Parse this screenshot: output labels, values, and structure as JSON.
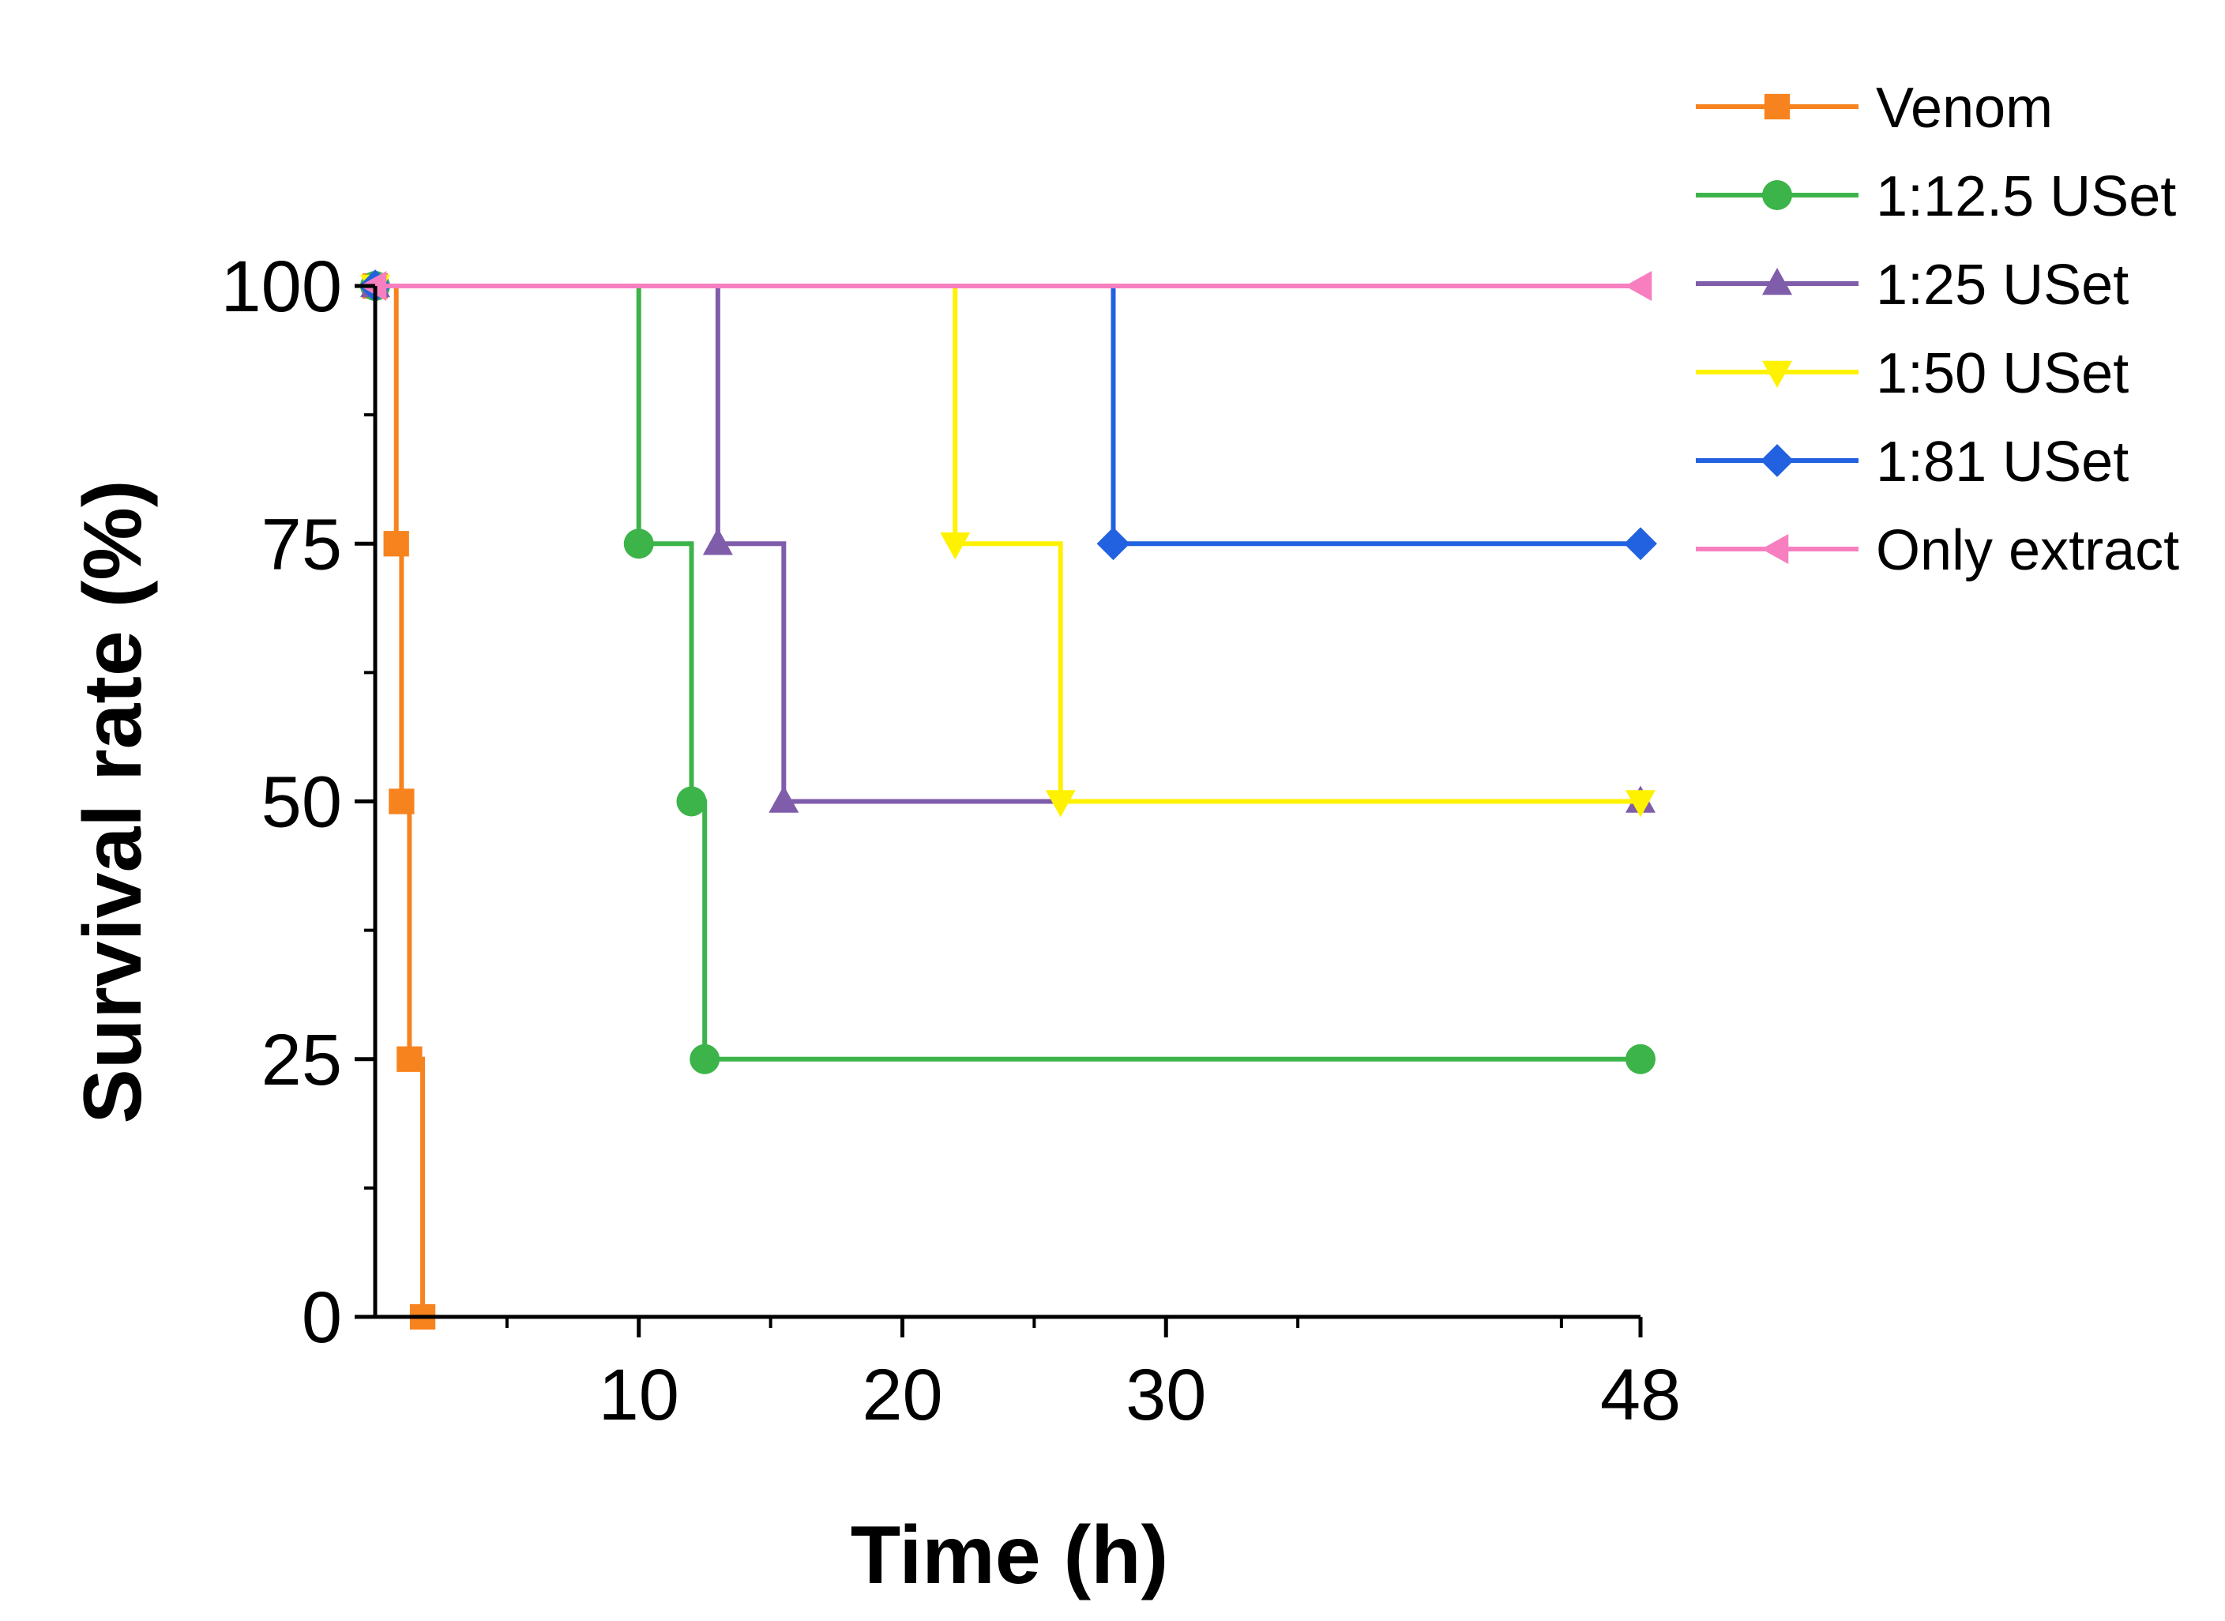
{
  "chart_data": {
    "type": "line",
    "step": true,
    "title": "",
    "xlabel": "Time (h)",
    "ylabel": "Survival rate (%)",
    "xlim": [
      0,
      48
    ],
    "ylim": [
      0,
      100
    ],
    "x_ticks": [
      10,
      20,
      30,
      48
    ],
    "y_ticks": [
      0,
      25,
      50,
      75,
      100
    ],
    "legend_position": "top-right",
    "series": [
      {
        "name": "Venom",
        "color": "#F7831F",
        "marker": "square",
        "points": [
          [
            0,
            100
          ],
          [
            0.8,
            75
          ],
          [
            1.0,
            50
          ],
          [
            1.3,
            25
          ],
          [
            1.8,
            0
          ]
        ]
      },
      {
        "name": "1:12.5 USet",
        "color": "#3CB44A",
        "marker": "circle",
        "points": [
          [
            0,
            100
          ],
          [
            10,
            75
          ],
          [
            12,
            50
          ],
          [
            12.5,
            25
          ],
          [
            48,
            25
          ]
        ]
      },
      {
        "name": "1:25 USet",
        "color": "#7F5DAA",
        "marker": "triangle-up",
        "points": [
          [
            0,
            100
          ],
          [
            13,
            75
          ],
          [
            15.5,
            50
          ],
          [
            48,
            50
          ]
        ]
      },
      {
        "name": "1:50 USet",
        "color": "#FFF200",
        "marker": "triangle-down",
        "points": [
          [
            0,
            100
          ],
          [
            22,
            75
          ],
          [
            26,
            50
          ],
          [
            48,
            50
          ]
        ]
      },
      {
        "name": "1:81 USet",
        "color": "#2262E0",
        "marker": "diamond",
        "points": [
          [
            0,
            100
          ],
          [
            28,
            75
          ],
          [
            48,
            75
          ]
        ]
      },
      {
        "name": "Only extract",
        "color": "#F77FC0",
        "marker": "triangle-left",
        "points": [
          [
            0,
            100
          ],
          [
            48,
            100
          ]
        ]
      }
    ]
  }
}
